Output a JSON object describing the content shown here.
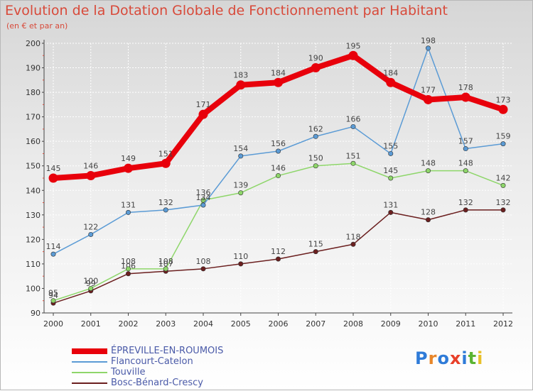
{
  "title": "Evolution de la Dotation Globale de Fonctionnement par Habitant",
  "subtitle": "(en € et par an)",
  "logo_text": "Proxiti",
  "chart_data": {
    "type": "line",
    "title": "Evolution de la Dotation Globale de Fonctionnement par Habitant",
    "subtitle": "(en € et par an)",
    "x": [
      "2000",
      "2001",
      "2002",
      "2003",
      "2004",
      "2005",
      "2006",
      "2007",
      "2008",
      "2009",
      "2010",
      "2011",
      "2012"
    ],
    "ylim": [
      90,
      200
    ],
    "yticks": [
      90,
      100,
      110,
      120,
      130,
      140,
      150,
      160,
      170,
      180,
      190,
      200
    ],
    "grid": true,
    "legend_position": "bottom-left",
    "series": [
      {
        "name": "ÉPREVILLE-EN-ROUMOIS",
        "color": "#e8000b",
        "values": [
          145,
          146,
          149,
          151,
          171,
          183,
          184,
          190,
          195,
          184,
          177,
          178,
          173
        ]
      },
      {
        "name": "Flancourt-Catelon",
        "color": "#5b9bd5",
        "values": [
          114,
          122,
          131,
          132,
          134,
          154,
          156,
          162,
          166,
          155,
          198,
          157,
          159
        ]
      },
      {
        "name": "Touville",
        "color": "#8ed66a",
        "values": [
          95,
          100,
          108,
          108,
          136,
          139,
          146,
          150,
          151,
          145,
          148,
          148,
          142
        ]
      },
      {
        "name": "Bosc-Bénard-Crescy",
        "color": "#6b1f1f",
        "values": [
          94,
          99,
          106,
          107,
          108,
          110,
          112,
          115,
          118,
          131,
          128,
          132,
          132
        ]
      }
    ]
  }
}
